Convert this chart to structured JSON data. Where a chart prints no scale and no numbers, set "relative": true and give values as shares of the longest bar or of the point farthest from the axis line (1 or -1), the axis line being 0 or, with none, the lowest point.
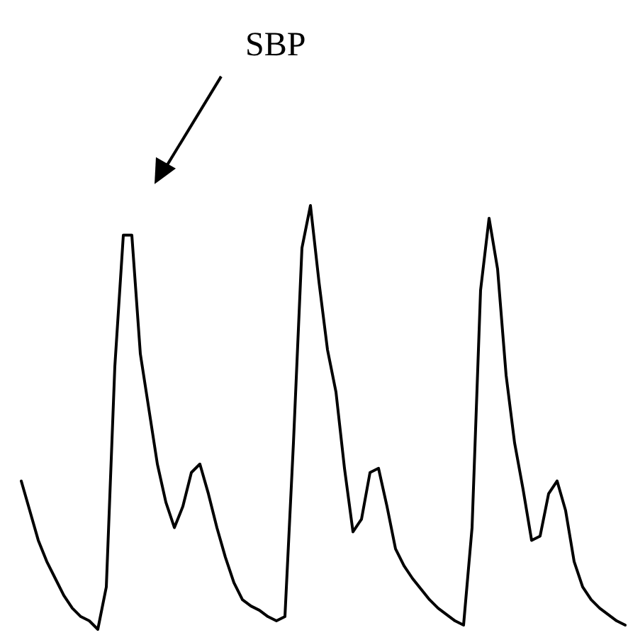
{
  "chart_data": {
    "type": "line",
    "relative": true,
    "line_style": "solid",
    "categories": [
      null,
      null,
      null,
      null,
      null,
      null,
      null,
      null,
      null,
      null,
      null,
      null,
      null,
      null,
      null,
      null,
      null,
      null,
      null,
      null,
      null,
      null,
      null,
      null,
      null,
      null,
      null,
      null,
      null,
      null,
      null,
      null,
      null,
      null,
      null,
      null,
      null,
      null,
      null,
      null,
      null,
      null,
      null,
      null,
      null,
      null,
      null,
      null,
      null,
      null,
      null,
      null,
      null,
      null,
      null,
      null,
      null,
      null,
      null,
      null,
      null,
      null,
      null,
      null,
      null,
      null,
      null,
      null,
      null,
      null,
      null,
      null
    ],
    "series": [
      {
        "color": "#000000",
        "values": [
          0.35,
          0.28,
          0.21,
          0.16,
          0.12,
          0.08,
          0.05,
          0.03,
          0.02,
          0,
          0.1,
          0.62,
          0.93,
          0.93,
          0.65,
          0.52,
          0.39,
          0.3,
          0.24,
          0.29,
          0.37,
          0.39,
          0.32,
          0.24,
          0.17,
          0.11,
          0.07,
          0.055,
          0.045,
          0.03,
          0.02,
          0.03,
          0.44,
          0.9,
          1,
          0.82,
          0.66,
          0.56,
          0.38,
          0.23,
          0.26,
          0.37,
          0.38,
          0.29,
          0.19,
          0.15,
          0.12,
          0.095,
          0.07,
          0.05,
          0.035,
          0.02,
          0.01,
          0.24,
          0.8,
          0.97,
          0.85,
          0.6,
          0.44,
          0.33,
          0.21,
          0.22,
          0.32,
          0.35,
          0.28,
          0.16,
          0.1,
          0.07,
          0.05,
          0.035,
          0.02,
          0.01
        ]
      }
    ],
    "annotations": [
      "SBP"
    ]
  }
}
